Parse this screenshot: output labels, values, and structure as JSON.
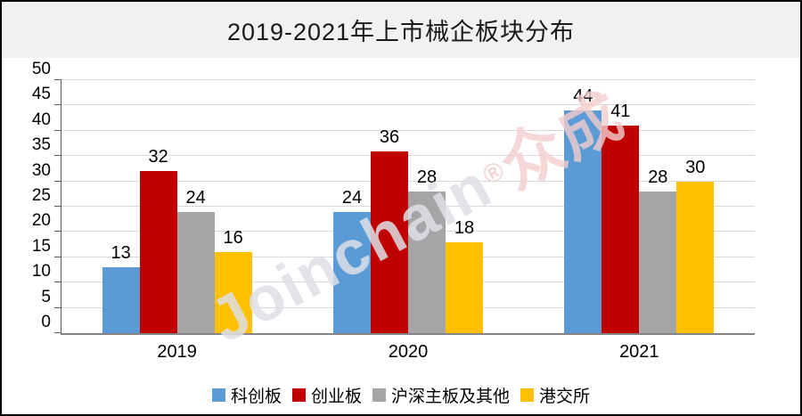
{
  "title": "2019-2021年上市械企板块分布",
  "watermark": {
    "latin": "Joinchain",
    "reg": "®",
    "cjk": "众成"
  },
  "colors": {
    "series_blue": "#5B9BD5",
    "series_red": "#C00000",
    "series_gray": "#A5A5A5",
    "series_yellow": "#FFC000",
    "title_band_bg": "#F1F1F1",
    "gridline": "#D9D9D9",
    "axis": "#595959"
  },
  "chart_data": {
    "type": "bar",
    "title": "2019-2021年上市械企板块分布",
    "categories": [
      "2019",
      "2020",
      "2021"
    ],
    "series": [
      {
        "name": "科创板",
        "color": "#5B9BD5",
        "values": [
          13,
          24,
          44
        ]
      },
      {
        "name": "创业板",
        "color": "#C00000",
        "values": [
          32,
          36,
          41
        ]
      },
      {
        "name": "沪深主板及其他",
        "color": "#A5A5A5",
        "values": [
          24,
          28,
          28
        ]
      },
      {
        "name": "港交所",
        "color": "#FFC000",
        "values": [
          16,
          18,
          30
        ]
      }
    ],
    "xlabel": "",
    "ylabel": "",
    "ylim": [
      0,
      50
    ],
    "yticks": [
      0,
      5,
      10,
      15,
      20,
      25,
      30,
      35,
      40,
      45,
      50
    ],
    "grid": true,
    "legend_position": "bottom",
    "data_labels": true
  }
}
